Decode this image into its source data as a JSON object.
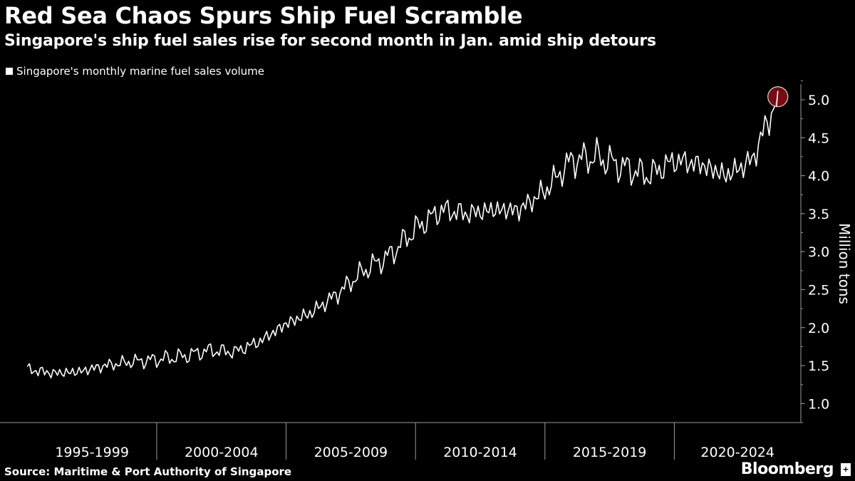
{
  "header": {
    "title": "Red Sea Chaos Spurs Ship Fuel Scramble",
    "subtitle": "Singapore's ship fuel sales rise for second month in Jan. amid ship detours"
  },
  "footer": {
    "source": "Source: Maritime & Port Authority of Singapore",
    "brand": "Bloomberg"
  },
  "colors": {
    "background": "#000000",
    "line": "#ffffff",
    "highlight": "#8b0d16",
    "axis": "#9a9a9a"
  },
  "chart_data": {
    "type": "line",
    "title": "Red Sea Chaos Spurs Ship Fuel Scramble",
    "subtitle": "Singapore's ship fuel sales rise for second month in Jan. amid ship detours",
    "xlabel": "",
    "ylabel": "Million tons",
    "ylim": [
      0.75,
      5.3
    ],
    "yticks": [
      1.0,
      1.5,
      2.0,
      2.5,
      3.0,
      3.5,
      4.0,
      4.5,
      5.0
    ],
    "ytick_labels": [
      "1.0",
      "1.5",
      "2.0",
      "2.5",
      "3.0",
      "3.5",
      "4.0",
      "4.5",
      "5.0"
    ],
    "x_categories": [
      "1995-1999",
      "2000-2004",
      "2005-2009",
      "2010-2014",
      "2015-2019",
      "2020-2024"
    ],
    "x_start": "1995-01",
    "x_end": "2024-01",
    "legend_position": "top-left",
    "grid": false,
    "highlight": {
      "x": "2024-01",
      "y": 5.04
    },
    "series": [
      {
        "name": "Singapore's monthly marine fuel sales volume",
        "frequency": "annual-average",
        "x": [
          1995,
          1996,
          1997,
          1998,
          1999,
          2000,
          2001,
          2002,
          2003,
          2004,
          2005,
          2006,
          2007,
          2008,
          2009,
          2010,
          2011,
          2012,
          2013,
          2014,
          2015,
          2016,
          2017,
          2018,
          2019,
          2020,
          2021,
          2022,
          2023,
          2024
        ],
        "values": [
          1.45,
          1.4,
          1.42,
          1.5,
          1.55,
          1.58,
          1.62,
          1.7,
          1.68,
          1.82,
          2.05,
          2.2,
          2.45,
          2.75,
          2.95,
          3.3,
          3.55,
          3.5,
          3.55,
          3.55,
          3.8,
          4.2,
          4.25,
          4.12,
          4.0,
          4.2,
          4.15,
          4.0,
          4.2,
          5.04
        ]
      }
    ]
  }
}
